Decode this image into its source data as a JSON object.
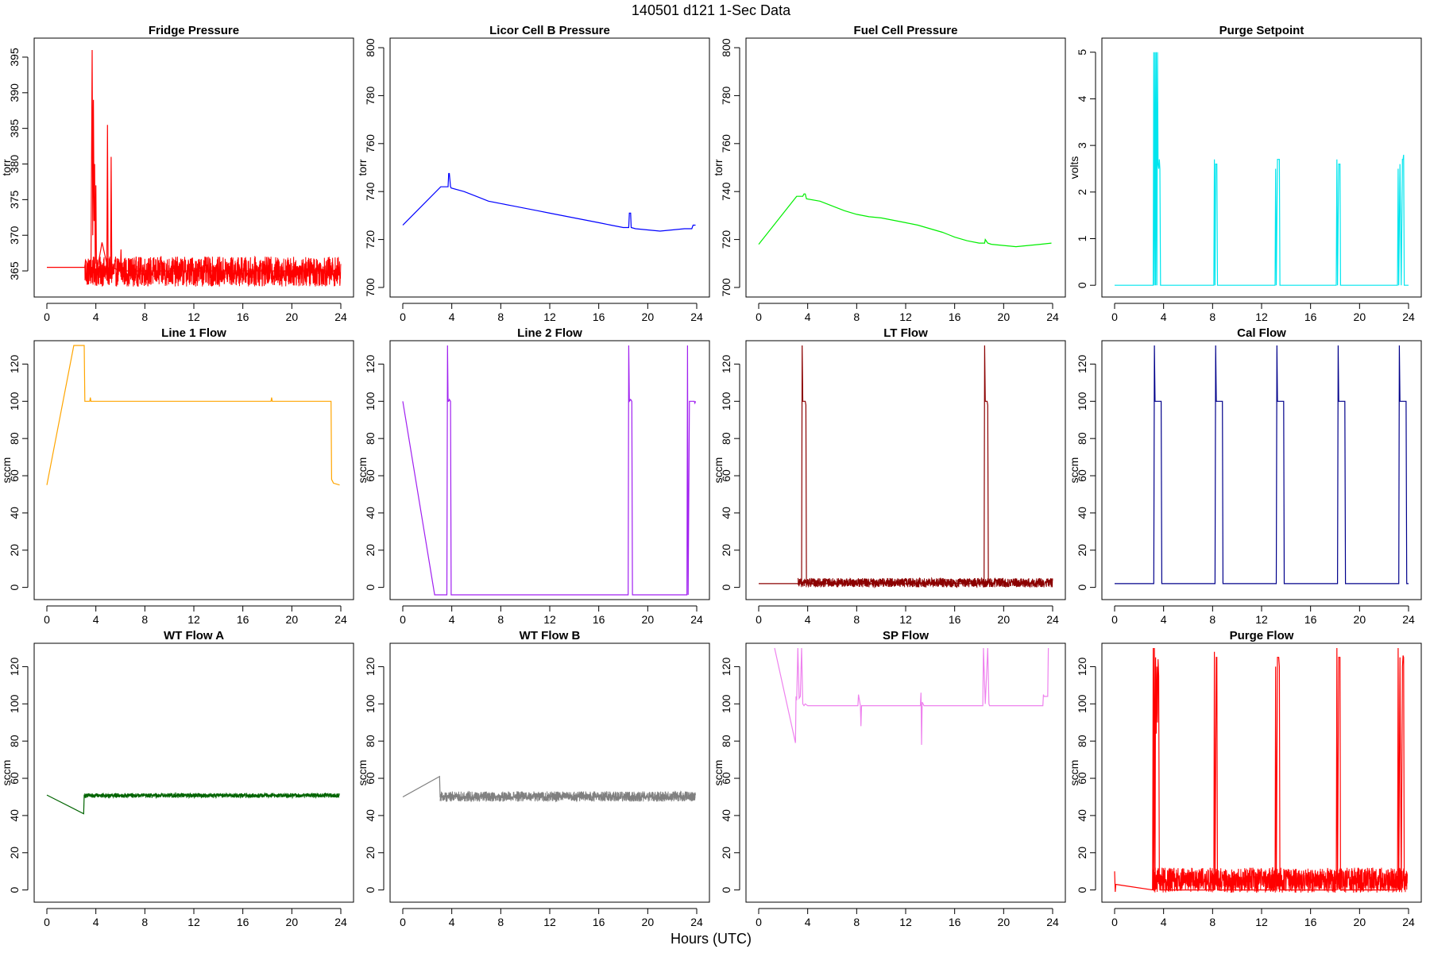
{
  "figure": {
    "title": "140501   d121   1-Sec Data",
    "xlabel": "Hours (UTC)"
  },
  "chart_data": [
    {
      "type": "line",
      "title": "Fridge Pressure",
      "ylabel": "torr",
      "color": "#ff0000",
      "xlim": [
        0,
        24
      ],
      "ylim": [
        362,
        397
      ],
      "xticks": [
        0,
        4,
        8,
        12,
        16,
        20,
        24
      ],
      "yticks": [
        365,
        370,
        375,
        380,
        385,
        390,
        395
      ],
      "x": [
        0,
        3.1,
        3.15,
        3.6,
        3.7,
        3.75,
        3.8,
        3.85,
        3.9,
        3.95,
        4.0,
        4.05,
        4.1,
        4.5,
        4.9,
        4.95,
        5.0,
        5.2,
        5.25,
        5.3,
        6.0,
        6.05,
        6.1,
        8,
        12,
        16,
        20,
        23.9
      ],
      "y": [
        365.5,
        365.5,
        366.5,
        365,
        396,
        370,
        389,
        372,
        380,
        366,
        377,
        365.5,
        365,
        369,
        366,
        385.5,
        365.5,
        365,
        381,
        365.5,
        365,
        368,
        365,
        365,
        365,
        365,
        365,
        365
      ],
      "noise": {
        "from": 3.1,
        "to": 24,
        "band": [
          362.8,
          367
        ]
      }
    },
    {
      "type": "line",
      "title": "Licor Cell B Pressure",
      "ylabel": "torr",
      "color": "#0000ff",
      "xlim": [
        0,
        24
      ],
      "ylim": [
        698,
        802
      ],
      "xticks": [
        0,
        4,
        8,
        12,
        16,
        20,
        24
      ],
      "yticks": [
        700,
        720,
        740,
        760,
        780,
        800
      ],
      "x": [
        0,
        3.1,
        3.7,
        3.75,
        3.8,
        3.9,
        3.95,
        5,
        6,
        7,
        8,
        9,
        10,
        11,
        12,
        13,
        14,
        15,
        15.5,
        16,
        17,
        18,
        18.45,
        18.5,
        18.6,
        18.65,
        19,
        20,
        21,
        22,
        23,
        23.6,
        23.7,
        23.9
      ],
      "y": [
        726,
        742,
        742,
        747.5,
        747.5,
        742,
        741.5,
        740,
        738,
        736,
        735,
        734,
        733,
        732,
        731,
        730,
        729,
        728,
        727.5,
        727,
        726,
        725,
        725,
        731,
        731,
        725,
        724.5,
        724,
        723.5,
        724,
        724.5,
        724.5,
        726,
        726
      ]
    },
    {
      "type": "line",
      "title": "Fuel Cell Pressure",
      "ylabel": "torr",
      "color": "#00ee00",
      "xlim": [
        0,
        24
      ],
      "ylim": [
        698,
        802
      ],
      "xticks": [
        0,
        4,
        8,
        12,
        16,
        20,
        24
      ],
      "yticks": [
        700,
        720,
        740,
        760,
        780,
        800
      ],
      "x": [
        0,
        3.1,
        3.6,
        3.7,
        3.8,
        3.9,
        5,
        6,
        7,
        8,
        9,
        10,
        11,
        12,
        13,
        14,
        15,
        15.5,
        16,
        17,
        18,
        18.45,
        18.5,
        18.7,
        19,
        20,
        21,
        22,
        23,
        23.9
      ],
      "y": [
        718,
        738,
        738,
        739,
        739,
        737,
        736,
        734,
        732,
        730.5,
        729.5,
        729,
        728,
        727,
        726,
        724.5,
        723,
        722,
        721,
        719.5,
        718.5,
        718.5,
        720,
        718.5,
        718,
        717.5,
        717,
        717.5,
        718,
        718.5
      ]
    },
    {
      "type": "line",
      "title": "Purge Setpoint",
      "ylabel": "volts",
      "color": "#00e5ee",
      "xlim": [
        0,
        24
      ],
      "ylim": [
        -0.15,
        5.2
      ],
      "xticks": [
        0,
        4,
        8,
        12,
        16,
        20,
        24
      ],
      "yticks": [
        0,
        1,
        2,
        3,
        4,
        5
      ],
      "x": [
        0,
        3.15,
        3.2,
        3.25,
        3.3,
        3.35,
        3.4,
        3.45,
        3.5,
        3.55,
        3.6,
        3.65,
        3.7,
        3.75,
        8.1,
        8.15,
        8.2,
        8.25,
        8.3,
        8.35,
        8.4,
        13.1,
        13.15,
        13.2,
        13.3,
        13.4,
        13.45,
        13.5,
        18.1,
        18.15,
        18.2,
        18.3,
        18.4,
        18.45,
        23.1,
        23.15,
        23.2,
        23.3,
        23.4,
        23.5,
        23.55,
        23.6,
        23.65,
        24
      ],
      "y": [
        0,
        0,
        5,
        0,
        5,
        0,
        5,
        0,
        5,
        2.6,
        2.5,
        2.7,
        2.5,
        0,
        0,
        2.7,
        0,
        2.6,
        2.6,
        2.6,
        0,
        0,
        2.5,
        0,
        2.7,
        2.7,
        2.7,
        0,
        0,
        2.7,
        0,
        2.6,
        2.6,
        0,
        0,
        2.5,
        0,
        2.6,
        0,
        2.7,
        2.7,
        2.8,
        0,
        0
      ]
    },
    {
      "type": "line",
      "title": "Line 1 Flow",
      "ylabel": "sccm",
      "color": "#ffa500",
      "xlim": [
        0,
        24
      ],
      "ylim": [
        -4,
        130
      ],
      "xticks": [
        0,
        4,
        8,
        12,
        16,
        20,
        24
      ],
      "yticks": [
        0,
        20,
        40,
        60,
        80,
        100,
        120
      ],
      "x": [
        0,
        2.2,
        3.0,
        3.05,
        3.1,
        3.15,
        3.5,
        3.55,
        3.6,
        18.3,
        18.35,
        18.4,
        23.2,
        23.25,
        23.4,
        23.9
      ],
      "y": [
        55,
        130,
        130,
        130,
        100,
        100,
        100,
        102,
        100,
        100,
        102,
        100,
        100,
        58,
        56,
        55
      ]
    },
    {
      "type": "line",
      "title": "Line 2 Flow",
      "ylabel": "sccm",
      "color": "#a020f0",
      "xlim": [
        0,
        24
      ],
      "ylim": [
        -4,
        130
      ],
      "xticks": [
        0,
        4,
        8,
        12,
        16,
        20,
        24
      ],
      "yticks": [
        0,
        20,
        40,
        60,
        80,
        100,
        120
      ],
      "x": [
        0,
        2.6,
        3.6,
        3.65,
        3.7,
        3.75,
        3.8,
        3.9,
        3.95,
        4.0,
        18.4,
        18.45,
        18.5,
        18.6,
        18.7,
        18.75,
        23.2,
        23.25,
        23.3,
        23.4,
        23.8,
        23.85,
        23.9
      ],
      "y": [
        100,
        -4,
        -4,
        130,
        100,
        100,
        101,
        100,
        -4,
        -4,
        -4,
        130,
        100,
        101,
        100,
        -4,
        -4,
        130,
        -4,
        100,
        100,
        99,
        100
      ]
    },
    {
      "type": "line",
      "title": "LT Flow",
      "ylabel": "sccm",
      "color": "#8b0000",
      "xlim": [
        0,
        24
      ],
      "ylim": [
        -4,
        130
      ],
      "xticks": [
        0,
        4,
        8,
        12,
        16,
        20,
        24
      ],
      "yticks": [
        0,
        20,
        40,
        60,
        80,
        100,
        120
      ],
      "x": [
        0,
        3.2,
        3.5,
        3.55,
        3.6,
        3.8,
        3.85,
        3.9,
        18.4,
        18.45,
        18.5,
        18.65,
        18.7,
        18.75
      ],
      "y": [
        2,
        2,
        2,
        130,
        100,
        100,
        98,
        2,
        2,
        130,
        100,
        100,
        98,
        2
      ],
      "noise": {
        "from": 3.2,
        "to": 24,
        "band": [
          0,
          5
        ]
      }
    },
    {
      "type": "line",
      "title": "Cal Flow",
      "ylabel": "sccm",
      "color": "#00008b",
      "xlim": [
        0,
        24
      ],
      "ylim": [
        -4,
        130
      ],
      "xticks": [
        0,
        4,
        8,
        12,
        16,
        20,
        24
      ],
      "yticks": [
        0,
        20,
        40,
        60,
        80,
        100,
        120
      ],
      "x": [
        0,
        3.2,
        3.25,
        3.3,
        3.8,
        3.85,
        8.2,
        8.25,
        8.3,
        8.8,
        8.85,
        13.2,
        13.25,
        13.3,
        13.8,
        13.85,
        18.2,
        18.25,
        18.3,
        18.8,
        18.85,
        23.2,
        23.25,
        23.3,
        23.8,
        23.85,
        24
      ],
      "y": [
        2,
        2,
        130,
        100,
        100,
        2,
        2,
        130,
        100,
        100,
        2,
        2,
        130,
        100,
        100,
        2,
        2,
        130,
        100,
        100,
        2,
        2,
        130,
        100,
        100,
        2,
        2
      ]
    },
    {
      "type": "line",
      "title": "WT Flow A",
      "ylabel": "sccm",
      "color": "#006400",
      "xlim": [
        0,
        24
      ],
      "ylim": [
        -4,
        130
      ],
      "xticks": [
        0,
        4,
        8,
        12,
        16,
        20,
        24
      ],
      "yticks": [
        0,
        20,
        40,
        60,
        80,
        100,
        120
      ],
      "x": [
        0,
        3.0,
        3.05,
        3.1,
        12,
        23.9
      ],
      "y": [
        51,
        41,
        51,
        51,
        51,
        51
      ],
      "noise": {
        "from": 3.05,
        "to": 23.9,
        "band": [
          49.6,
          52
        ]
      }
    },
    {
      "type": "line",
      "title": "WT Flow B",
      "ylabel": "sccm",
      "color": "#808080",
      "xlim": [
        0,
        24
      ],
      "ylim": [
        -4,
        130
      ],
      "xticks": [
        0,
        4,
        8,
        12,
        16,
        20,
        24
      ],
      "yticks": [
        0,
        20,
        40,
        60,
        80,
        100,
        120
      ],
      "x": [
        0,
        3.0,
        3.05,
        3.1,
        12,
        23.9
      ],
      "y": [
        50,
        61,
        50,
        50,
        50,
        50
      ],
      "noise": {
        "from": 3.05,
        "to": 23.9,
        "band": [
          47.5,
          53
        ]
      }
    },
    {
      "type": "line",
      "title": "SP Flow",
      "ylabel": "sccm",
      "color": "#ee82ee",
      "xlim": [
        0,
        24
      ],
      "ylim": [
        -4,
        130
      ],
      "xticks": [
        0,
        4,
        8,
        12,
        16,
        20,
        24
      ],
      "yticks": [
        0,
        20,
        40,
        60,
        80,
        100,
        120
      ],
      "x": [
        1.3,
        3.0,
        3.05,
        3.1,
        3.2,
        3.3,
        3.4,
        3.5,
        3.6,
        3.7,
        3.8,
        4.0,
        8.1,
        8.15,
        8.3,
        8.35,
        8.4,
        13.2,
        13.25,
        13.3,
        13.35,
        13.5,
        18.3,
        18.35,
        18.5,
        18.7,
        18.8,
        18.85,
        23.2,
        23.25,
        23.3,
        23.6,
        23.65
      ],
      "y": [
        130,
        79,
        104,
        102,
        130,
        103,
        104,
        130,
        100,
        99,
        100,
        99,
        99,
        105,
        99,
        88,
        99,
        99,
        106,
        78,
        101,
        99,
        99,
        130,
        100,
        130,
        100,
        99,
        99,
        105,
        104,
        104,
        130
      ]
    },
    {
      "type": "line",
      "title": "Purge Flow",
      "ylabel": "sccm",
      "color": "#ff0000",
      "xlim": [
        0,
        24
      ],
      "ylim": [
        -4,
        130
      ],
      "xticks": [
        0,
        4,
        8,
        12,
        16,
        20,
        24
      ],
      "yticks": [
        0,
        20,
        40,
        60,
        80,
        100,
        120
      ],
      "x": [
        0,
        0.05,
        0.1,
        3.1,
        3.15,
        3.2,
        3.25,
        3.3,
        3.35,
        3.4,
        3.45,
        3.5,
        3.55,
        3.6,
        3.65,
        3.7,
        3.75,
        8.1,
        8.15,
        8.2,
        8.3,
        8.35,
        8.4,
        13.1,
        13.15,
        13.2,
        13.3,
        13.4,
        13.45,
        13.5,
        18.1,
        18.15,
        18.2,
        18.3,
        18.4,
        18.45,
        23.1,
        23.15,
        23.2,
        23.3,
        23.4,
        23.5,
        23.55,
        23.6,
        23.65
      ],
      "y": [
        10,
        -1,
        3,
        0,
        130,
        0,
        130,
        0,
        125,
        84,
        120,
        90,
        124,
        115,
        8,
        0,
        0,
        0,
        128,
        0,
        125,
        125,
        0,
        0,
        120,
        0,
        125,
        125,
        120,
        0,
        0,
        130,
        0,
        125,
        125,
        0,
        0,
        130,
        0,
        125,
        0,
        120,
        126,
        125,
        0
      ],
      "noise": {
        "from": 3.1,
        "to": 23.9,
        "band": [
          -1.5,
          12
        ]
      }
    }
  ]
}
